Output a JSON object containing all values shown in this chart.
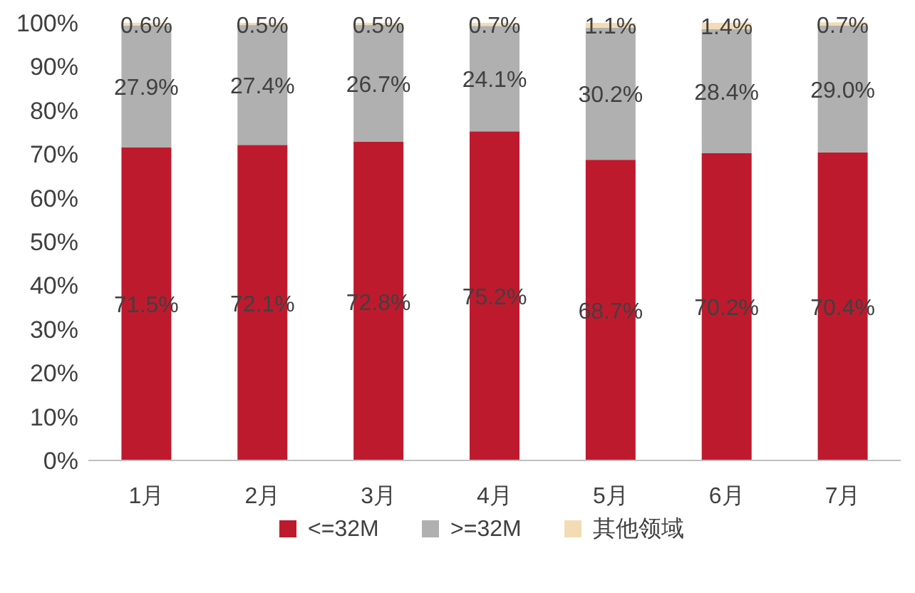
{
  "chart_data": {
    "type": "bar",
    "stacked": true,
    "categories": [
      "1月",
      "2月",
      "3月",
      "4月",
      "5月",
      "6月",
      "7月"
    ],
    "series": [
      {
        "name": "<=32M",
        "color": "#be1a2e",
        "values": [
          71.5,
          72.1,
          72.8,
          75.2,
          68.7,
          70.2,
          70.4
        ],
        "value_labels": [
          "71.5%",
          "72.1%",
          "72.8%",
          "75.2%",
          "68.7%",
          "70.2%",
          "70.4%"
        ]
      },
      {
        "name": ">=32M",
        "color": "#b0b0b0",
        "values": [
          27.9,
          27.4,
          26.7,
          24.1,
          30.2,
          28.4,
          29.0
        ],
        "value_labels": [
          "27.9%",
          "27.4%",
          "26.7%",
          "24.1%",
          "30.2%",
          "28.4%",
          "29.0%"
        ]
      },
      {
        "name": "其他领域",
        "color": "#f3dcb4",
        "values": [
          0.6,
          0.5,
          0.5,
          0.7,
          1.1,
          1.4,
          0.7
        ],
        "value_labels": [
          "0.6%",
          "0.5%",
          "0.5%",
          "0.7%",
          "1.1%",
          "1.4%",
          "0.7%"
        ]
      }
    ],
    "ylim": [
      0,
      100
    ],
    "yticks": [
      {
        "value": 0,
        "label": "0%"
      },
      {
        "value": 10,
        "label": "10%"
      },
      {
        "value": 20,
        "label": "20%"
      },
      {
        "value": 30,
        "label": "30%"
      },
      {
        "value": 40,
        "label": "40%"
      },
      {
        "value": 50,
        "label": "50%"
      },
      {
        "value": 60,
        "label": "60%"
      },
      {
        "value": 70,
        "label": "70%"
      },
      {
        "value": 80,
        "label": "80%"
      },
      {
        "value": 90,
        "label": "90%"
      },
      {
        "value": 100,
        "label": "100%"
      }
    ],
    "legend": "bottom"
  }
}
